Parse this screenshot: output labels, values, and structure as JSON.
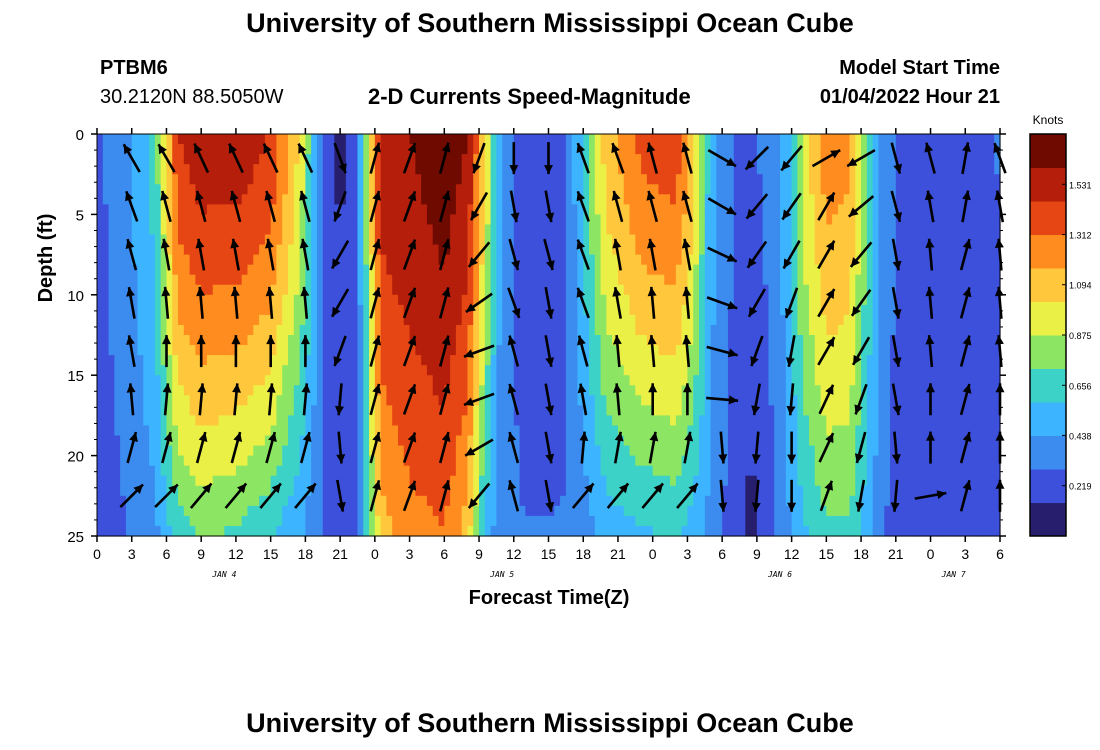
{
  "page": {
    "title_top": "University of Southern Mississippi Ocean Cube",
    "title_bottom": "University of Southern Mississippi Ocean Cube",
    "station_id": "PTBM6",
    "station_coords": "30.2120N  88.5050W",
    "plot_title": "2-D Currents Speed-Magnitude",
    "model_start_label": "Model Start Time",
    "model_start_value": "01/04/2022 Hour 21"
  },
  "colors": {
    "palette": [
      "#281e6e",
      "#3c50dc",
      "#3c8cf0",
      "#3cb4ff",
      "#3cd2c8",
      "#8ce664",
      "#ebf046",
      "#ffc83c",
      "#ff8c1e",
      "#e64614",
      "#b41e0a",
      "#6e0a00"
    ]
  },
  "chart_data": {
    "type": "heatmap",
    "title": "2-D Currents Speed-Magnitude",
    "xlabel": "Forecast Time(Z)",
    "ylabel": "Depth (ft)",
    "colorbar_label": "Knots",
    "colorbar_ticks": [
      "1.531",
      "1.312",
      "1.094",
      "0.875",
      "0.656",
      "0.438",
      "0.219"
    ],
    "colorbar_values": [
      1.531,
      1.312,
      1.094,
      0.875,
      0.656,
      0.438,
      0.219
    ],
    "color_range": [
      0,
      1.75
    ],
    "x_range": [
      0,
      78
    ],
    "y_range": [
      0,
      25
    ],
    "x_tick_values": [
      0,
      3,
      6,
      9,
      12,
      15,
      18,
      21,
      24,
      27,
      30,
      33,
      36,
      39,
      42,
      45,
      48,
      51,
      54,
      57,
      60,
      63,
      66,
      69,
      72,
      75,
      78
    ],
    "x_tick_labels": [
      "0",
      "3",
      "6",
      "9",
      "12",
      "15",
      "18",
      "21",
      "0",
      "3",
      "6",
      "9",
      "12",
      "15",
      "18",
      "21",
      "0",
      "3",
      "6",
      "9",
      "12",
      "15",
      "18",
      "21",
      "0",
      "3",
      "6"
    ],
    "y_ticks": [
      0,
      5,
      10,
      15,
      20,
      25
    ],
    "y_tick_labels": [
      "0",
      "5",
      "10",
      "15",
      "20",
      "25"
    ],
    "day_labels": [
      {
        "text": "JAN 4",
        "hour": 11
      },
      {
        "text": "JAN 5",
        "hour": 35
      },
      {
        "text": "JAN 6",
        "hour": 59
      },
      {
        "text": "JAN 7",
        "hour": 74
      }
    ],
    "speed_profile": [
      {
        "hour": 0,
        "top": 0.25,
        "bottom": 0.2
      },
      {
        "hour": 3,
        "top": 0.45,
        "bottom": 0.3
      },
      {
        "hour": 5,
        "top": 0.65,
        "bottom": 0.4
      },
      {
        "hour": 7,
        "top": 1.45,
        "bottom": 0.65
      },
      {
        "hour": 9,
        "top": 1.55,
        "bottom": 0.75
      },
      {
        "hour": 12,
        "top": 1.55,
        "bottom": 0.7
      },
      {
        "hour": 15,
        "top": 1.45,
        "bottom": 0.6
      },
      {
        "hour": 17.5,
        "top": 1.0,
        "bottom": 0.45
      },
      {
        "hour": 19.5,
        "top": 0.3,
        "bottom": 0.3
      },
      {
        "hour": 21,
        "top": 0.1,
        "bottom": 0.25
      },
      {
        "hour": 22.5,
        "top": 0.3,
        "bottom": 0.3
      },
      {
        "hour": 24.5,
        "top": 1.55,
        "bottom": 1.1
      },
      {
        "hour": 27,
        "top": 1.6,
        "bottom": 1.25
      },
      {
        "hour": 30,
        "top": 1.7,
        "bottom": 1.3
      },
      {
        "hour": 32,
        "top": 1.6,
        "bottom": 1.1
      },
      {
        "hour": 33.5,
        "top": 1.05,
        "bottom": 0.55
      },
      {
        "hour": 35,
        "top": 0.4,
        "bottom": 0.3
      },
      {
        "hour": 37,
        "top": 0.2,
        "bottom": 0.3
      },
      {
        "hour": 39,
        "top": 0.15,
        "bottom": 0.3
      },
      {
        "hour": 40.5,
        "top": 0.25,
        "bottom": 0.3
      },
      {
        "hour": 42,
        "top": 0.65,
        "bottom": 0.35
      },
      {
        "hour": 44,
        "top": 1.1,
        "bottom": 0.5
      },
      {
        "hour": 47,
        "top": 1.35,
        "bottom": 0.55
      },
      {
        "hour": 50,
        "top": 1.4,
        "bottom": 0.6
      },
      {
        "hour": 51.5,
        "top": 1.1,
        "bottom": 0.5
      },
      {
        "hour": 53,
        "top": 0.5,
        "bottom": 0.4
      },
      {
        "hour": 55,
        "top": 0.3,
        "bottom": 0.2
      },
      {
        "hour": 56.5,
        "top": 0.25,
        "bottom": 0.1
      },
      {
        "hour": 58,
        "top": 0.35,
        "bottom": 0.2
      },
      {
        "hour": 59.5,
        "top": 0.5,
        "bottom": 0.4
      },
      {
        "hour": 61,
        "top": 0.95,
        "bottom": 0.55
      },
      {
        "hour": 63,
        "top": 1.25,
        "bottom": 0.7
      },
      {
        "hour": 65,
        "top": 1.2,
        "bottom": 0.7
      },
      {
        "hour": 66.5,
        "top": 0.75,
        "bottom": 0.5
      },
      {
        "hour": 68,
        "top": 0.35,
        "bottom": 0.3
      },
      {
        "hour": 70,
        "top": 0.25,
        "bottom": 0.2
      },
      {
        "hour": 74,
        "top": 0.2,
        "bottom": 0.2
      },
      {
        "hour": 78,
        "top": 0.3,
        "bottom": 0.25
      }
    ],
    "vector_hours": [
      3,
      6,
      9,
      12,
      15,
      18,
      21,
      24,
      27,
      30,
      33,
      36,
      39,
      42,
      45,
      48,
      51,
      54,
      57,
      60,
      63,
      66,
      69,
      72,
      75,
      78
    ],
    "vector_depths": [
      1.5,
      4.5,
      7.5,
      10.5,
      13.5,
      16.5,
      19.5,
      22.5
    ],
    "vector_directions_deg": [
      [
        330,
        340,
        345,
        350,
        350,
        355,
        15,
        45
      ],
      [
        330,
        345,
        350,
        355,
        0,
        5,
        15,
        45
      ],
      [
        335,
        345,
        350,
        355,
        0,
        5,
        15,
        40
      ],
      [
        335,
        345,
        350,
        355,
        0,
        5,
        15,
        40
      ],
      [
        335,
        345,
        350,
        355,
        0,
        5,
        15,
        40
      ],
      [
        335,
        345,
        350,
        355,
        0,
        5,
        15,
        40
      ],
      [
        160,
        200,
        210,
        210,
        200,
        185,
        175,
        170
      ],
      [
        15,
        15,
        15,
        15,
        15,
        15,
        15,
        15
      ],
      [
        20,
        20,
        20,
        20,
        20,
        20,
        20,
        20
      ],
      [
        15,
        15,
        15,
        15,
        15,
        15,
        15,
        15
      ],
      [
        200,
        210,
        220,
        235,
        250,
        250,
        240,
        220
      ],
      [
        180,
        170,
        165,
        160,
        345,
        345,
        345,
        345
      ],
      [
        180,
        170,
        165,
        170,
        170,
        170,
        170,
        170
      ],
      [
        340,
        340,
        340,
        340,
        345,
        350,
        5,
        40
      ],
      [
        340,
        345,
        350,
        350,
        355,
        355,
        10,
        40
      ],
      [
        345,
        345,
        350,
        355,
        355,
        0,
        10,
        40
      ],
      [
        345,
        345,
        350,
        355,
        355,
        0,
        10,
        40
      ],
      [
        120,
        120,
        115,
        110,
        105,
        95,
        175,
        175
      ],
      [
        225,
        220,
        215,
        210,
        200,
        190,
        185,
        185
      ],
      [
        220,
        215,
        210,
        200,
        190,
        185,
        180,
        180
      ],
      [
        60,
        30,
        30,
        30,
        30,
        25,
        25,
        20
      ],
      [
        240,
        230,
        220,
        215,
        210,
        200,
        195,
        190
      ],
      [
        165,
        165,
        170,
        170,
        170,
        170,
        175,
        185
      ],
      [
        345,
        350,
        355,
        355,
        355,
        0,
        0,
        80
      ],
      [
        10,
        10,
        15,
        15,
        15,
        15,
        15,
        15
      ],
      [
        340,
        350,
        355,
        355,
        355,
        0,
        0,
        0
      ]
    ]
  }
}
